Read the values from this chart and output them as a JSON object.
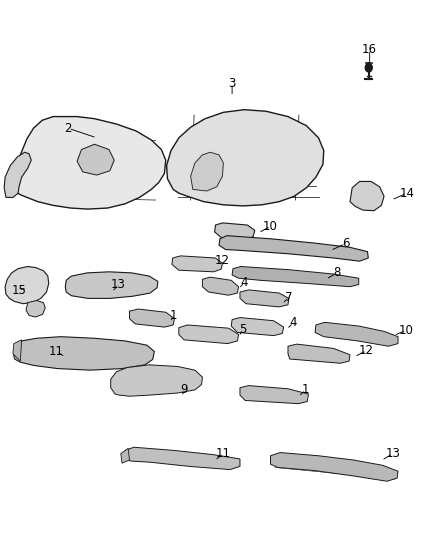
{
  "bg_color": "#ffffff",
  "fig_width": 4.38,
  "fig_height": 5.33,
  "dpi": 100,
  "line_color": "#1a1a1a",
  "fill_light": "#d8d8d8",
  "fill_mid": "#c0c0c0",
  "fill_dark": "#a8a8a8",
  "label_fontsize": 8.5,
  "label_color": "#000000",
  "labels": [
    {
      "num": "16",
      "xt": 0.845,
      "yt": 0.908,
      "xa": 0.845,
      "ya": 0.88
    },
    {
      "num": "3",
      "xt": 0.53,
      "yt": 0.845,
      "xa": 0.53,
      "ya": 0.82
    },
    {
      "num": "2",
      "xt": 0.155,
      "yt": 0.76,
      "xa": 0.22,
      "ya": 0.742
    },
    {
      "num": "14",
      "xt": 0.93,
      "yt": 0.638,
      "xa": 0.895,
      "ya": 0.625
    },
    {
      "num": "10",
      "xt": 0.618,
      "yt": 0.576,
      "xa": 0.59,
      "ya": 0.563
    },
    {
      "num": "6",
      "xt": 0.79,
      "yt": 0.543,
      "xa": 0.755,
      "ya": 0.53
    },
    {
      "num": "12",
      "xt": 0.508,
      "yt": 0.512,
      "xa": 0.51,
      "ya": 0.5
    },
    {
      "num": "4",
      "xt": 0.558,
      "yt": 0.47,
      "xa": 0.545,
      "ya": 0.458
    },
    {
      "num": "8",
      "xt": 0.77,
      "yt": 0.488,
      "xa": 0.745,
      "ya": 0.476
    },
    {
      "num": "15",
      "xt": 0.042,
      "yt": 0.455,
      "xa": 0.06,
      "ya": 0.46
    },
    {
      "num": "13",
      "xt": 0.27,
      "yt": 0.466,
      "xa": 0.255,
      "ya": 0.452
    },
    {
      "num": "7",
      "xt": 0.66,
      "yt": 0.442,
      "xa": 0.645,
      "ya": 0.43
    },
    {
      "num": "4",
      "xt": 0.67,
      "yt": 0.394,
      "xa": 0.655,
      "ya": 0.382
    },
    {
      "num": "1",
      "xt": 0.395,
      "yt": 0.408,
      "xa": 0.388,
      "ya": 0.395
    },
    {
      "num": "5",
      "xt": 0.555,
      "yt": 0.382,
      "xa": 0.545,
      "ya": 0.368
    },
    {
      "num": "10",
      "xt": 0.928,
      "yt": 0.38,
      "xa": 0.9,
      "ya": 0.37
    },
    {
      "num": "12",
      "xt": 0.838,
      "yt": 0.342,
      "xa": 0.81,
      "ya": 0.33
    },
    {
      "num": "11",
      "xt": 0.128,
      "yt": 0.34,
      "xa": 0.148,
      "ya": 0.33
    },
    {
      "num": "9",
      "xt": 0.42,
      "yt": 0.268,
      "xa": 0.415,
      "ya": 0.255
    },
    {
      "num": "1",
      "xt": 0.698,
      "yt": 0.268,
      "xa": 0.682,
      "ya": 0.255
    },
    {
      "num": "11",
      "xt": 0.51,
      "yt": 0.148,
      "xa": 0.49,
      "ya": 0.135
    },
    {
      "num": "13",
      "xt": 0.898,
      "yt": 0.148,
      "xa": 0.872,
      "ya": 0.135
    }
  ]
}
